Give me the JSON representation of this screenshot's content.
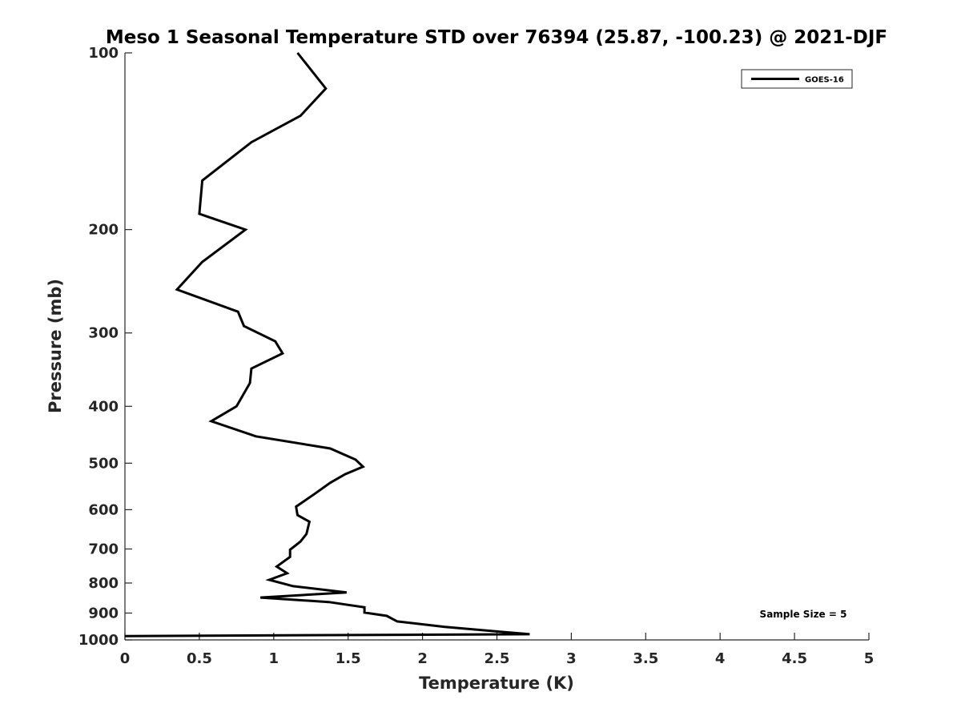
{
  "chart_data": {
    "type": "line",
    "title": "Meso 1 Seasonal Temperature STD over 76394 (25.87, -100.23) @ 2021-DJF",
    "xlabel": "Temperature (K)",
    "ylabel": "Pressure (mb)",
    "xlim": [
      0,
      5
    ],
    "ylim": [
      1000,
      100
    ],
    "y_scale": "log",
    "y_reversed": true,
    "grid": false,
    "xticks": [
      0,
      0.5,
      1,
      1.5,
      2,
      2.5,
      3,
      3.5,
      4,
      4.5,
      5
    ],
    "xtick_labels": [
      "0",
      "0.5",
      "1",
      "1.5",
      "2",
      "2.5",
      "3",
      "3.5",
      "4",
      "4.5",
      "5"
    ],
    "yticks": [
      100,
      200,
      300,
      400,
      500,
      600,
      700,
      800,
      900,
      1000
    ],
    "ytick_labels": [
      "100",
      "200",
      "300",
      "400",
      "500",
      "600",
      "700",
      "800",
      "900",
      "1000"
    ],
    "legend": {
      "placement": "top-right",
      "entries": [
        "GOES-16"
      ]
    },
    "annotation": "Sample Size = 5",
    "series": [
      {
        "name": "GOES-16",
        "color": "#000000",
        "x": [
          1.16,
          1.35,
          1.18,
          0.85,
          0.52,
          0.5,
          0.81,
          0.52,
          0.35,
          0.76,
          0.8,
          1.01,
          1.06,
          0.85,
          0.84,
          0.75,
          0.58,
          0.88,
          1.38,
          1.55,
          1.6,
          1.48,
          1.38,
          1.27,
          1.15,
          1.16,
          1.24,
          1.22,
          1.18,
          1.11,
          1.11,
          1.02,
          1.09,
          0.97,
          1.13,
          1.49,
          0.91,
          1.37,
          1.61,
          1.61,
          1.76,
          1.83,
          2.15,
          2.72,
          0.0
        ],
        "y": [
          100,
          115,
          128,
          142,
          165,
          188,
          200,
          227,
          253,
          276,
          292,
          310,
          325,
          345,
          365,
          400,
          424,
          450,
          472,
          493,
          507,
          522,
          540,
          565,
          593,
          613,
          629,
          660,
          680,
          702,
          722,
          750,
          770,
          790,
          810,
          830,
          847,
          862,
          880,
          898,
          910,
          930,
          950,
          978,
          985
        ]
      }
    ]
  }
}
